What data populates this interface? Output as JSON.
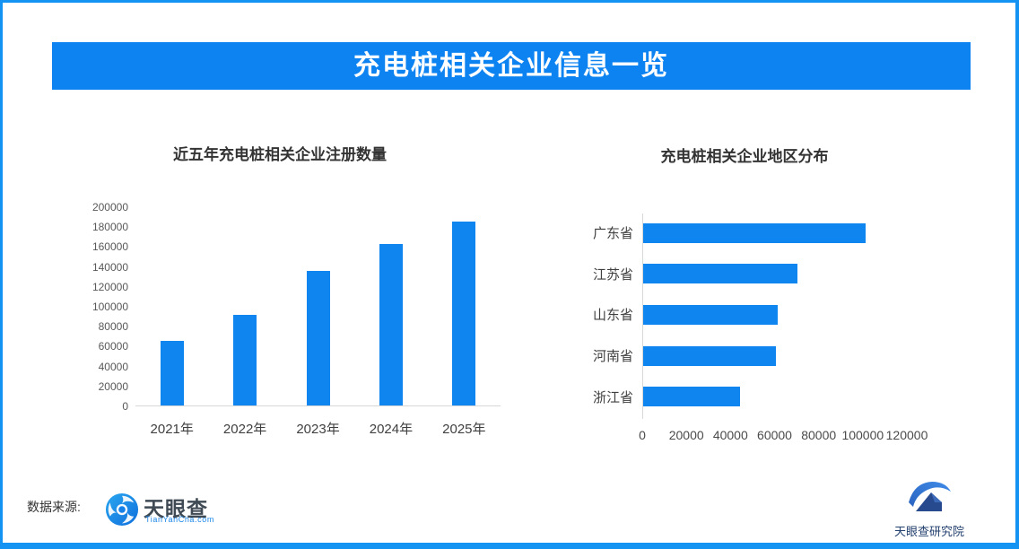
{
  "banner": {
    "title": "充电桩相关企业信息一览",
    "bg": "#0d83f2",
    "text_color": "#ffffff"
  },
  "colors": {
    "accent": "#0d83f2",
    "bar": "#0f86ef",
    "border": "#1593f3",
    "axis_line": "#d8d8d8",
    "title_text": "#333333",
    "tick_text": "#595959",
    "label_text": "#3f3f3f"
  },
  "chart_data": [
    {
      "type": "bar",
      "orientation": "vertical",
      "title": "近五年充电桩相关企业注册数量",
      "categories": [
        "2021年",
        "2022年",
        "2023年",
        "2024年",
        "2025年"
      ],
      "values": [
        65000,
        91000,
        135000,
        162000,
        185000
      ],
      "ylim": [
        0,
        200000
      ],
      "ytick_step": 20000,
      "xlabel": "",
      "ylabel": "",
      "grid": false,
      "legend": false
    },
    {
      "type": "bar",
      "orientation": "horizontal",
      "title": "充电桩相关企业地区分布",
      "categories": [
        "广东省",
        "江苏省",
        "山东省",
        "河南省",
        "浙江省"
      ],
      "values": [
        101000,
        70000,
        61000,
        60000,
        44000
      ],
      "xlim": [
        0,
        120000
      ],
      "xtick_step": 20000,
      "xlabel": "",
      "ylabel": "",
      "grid": false,
      "legend": false
    }
  ],
  "footer": {
    "source_label": "数据来源:",
    "tianyancha": {
      "name": "天眼查",
      "domain": "TianYanCha.com",
      "brand_color": "#1c87ea",
      "text_color": "#3f4a54"
    },
    "research": {
      "name": "天眼查研究院",
      "text_color": "#23406e"
    }
  }
}
